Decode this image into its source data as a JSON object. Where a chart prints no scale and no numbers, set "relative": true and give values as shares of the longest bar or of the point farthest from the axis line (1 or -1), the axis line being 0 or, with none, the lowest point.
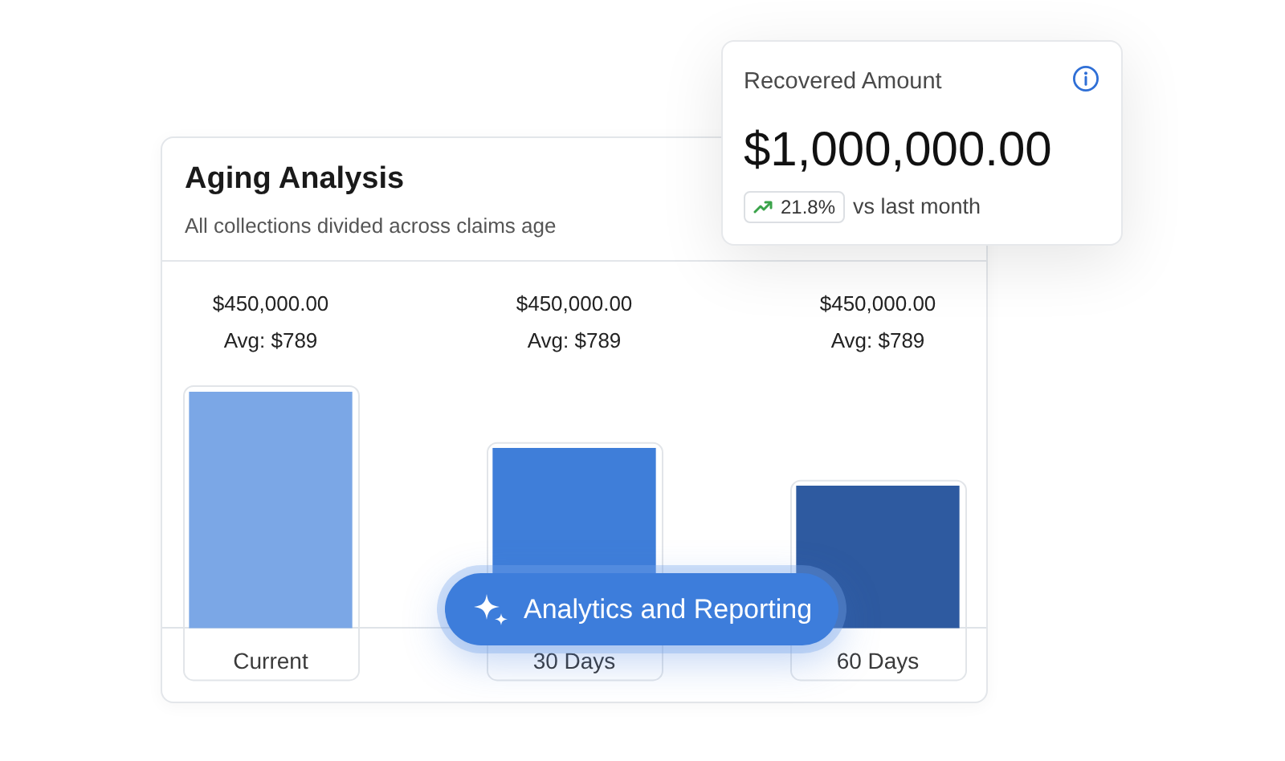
{
  "chart_data": [
    {
      "type": "bar",
      "title": "Aging Analysis",
      "subtitle": "All collections divided across claims age",
      "categories": [
        "Current",
        "30 Days",
        "60 Days"
      ],
      "values": [
        1,
        0.76,
        0.6
      ],
      "colors": [
        "#7ba7e6",
        "#3f7ed9",
        "#2e5aa0"
      ],
      "relative": true,
      "annotations": [
        "$450,000.00",
        "Avg: $789",
        "$450,000.00",
        "Avg: $789",
        "$450,000.00",
        "Avg: $789",
        "Analytics and Reporting"
      ]
    },
    {
      "type": "other",
      "title": "Recovered Amount",
      "annotations": [
        "$1,000,000.00",
        "21.8%",
        "vs last month"
      ]
    }
  ]
}
